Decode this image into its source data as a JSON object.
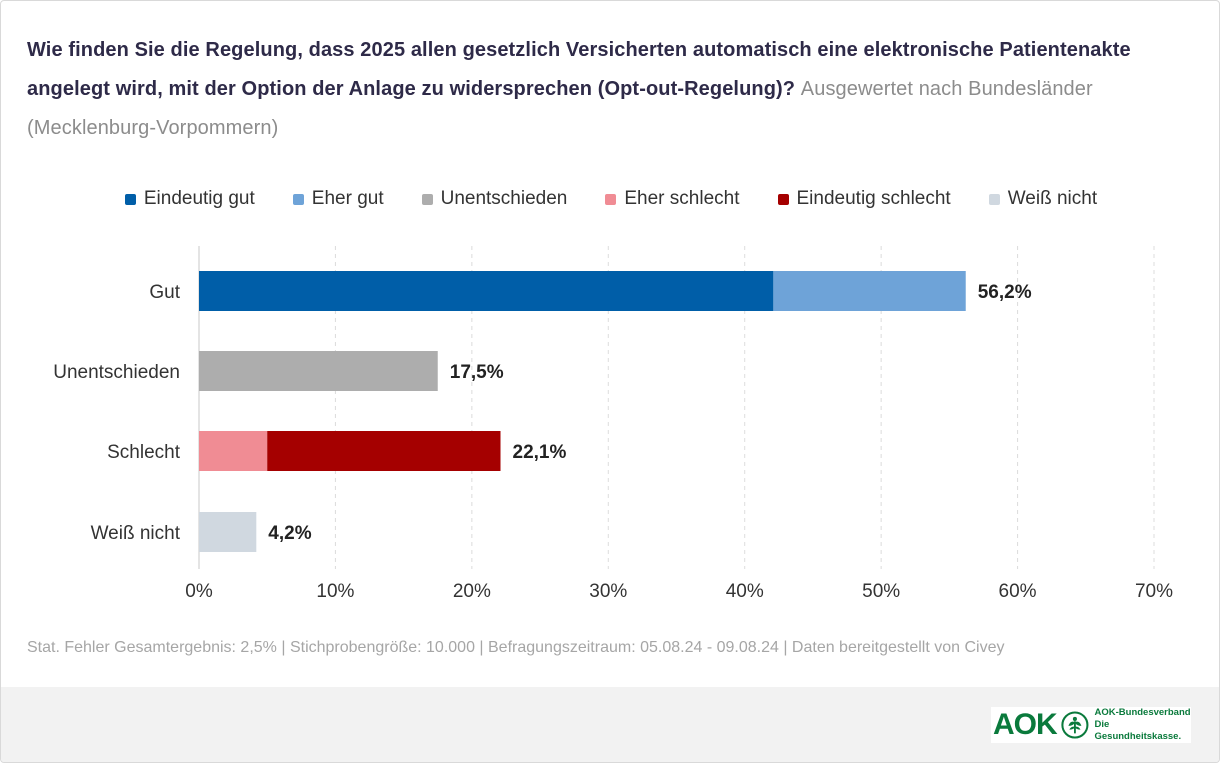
{
  "title": {
    "main": "Wie finden Sie die Regelung, dass 2025 allen gesetzlich Versicherten automatisch eine elektronische Patientenakte angelegt wird, mit der Option der Anlage zu widersprechen (Opt-out-Regelung)?",
    "subtitle": "Ausgewertet nach Bundesländer (Mecklenburg-Vorpommern)"
  },
  "legend": [
    {
      "label": "Eindeutig gut",
      "color": "#005ea8"
    },
    {
      "label": "Eher gut",
      "color": "#6ea3d8"
    },
    {
      "label": "Unentschieden",
      "color": "#adadad"
    },
    {
      "label": "Eher schlecht",
      "color": "#f08c94"
    },
    {
      "label": "Eindeutig schlecht",
      "color": "#a50000"
    },
    {
      "label": "Weiß nicht",
      "color": "#d0d8e0"
    }
  ],
  "chart_data": {
    "type": "bar",
    "orientation": "horizontal",
    "stacked": true,
    "categories": [
      "Gut",
      "Unentschieden",
      "Schlecht",
      "Weiß nicht"
    ],
    "series": [
      {
        "name": "Eindeutig gut",
        "values": [
          42.1,
          0,
          0,
          0
        ]
      },
      {
        "name": "Eher gut",
        "values": [
          14.1,
          0,
          0,
          0
        ]
      },
      {
        "name": "Unentschieden",
        "values": [
          0,
          17.5,
          0,
          0
        ]
      },
      {
        "name": "Eher schlecht",
        "values": [
          0,
          0,
          5.0,
          0
        ]
      },
      {
        "name": "Eindeutig schlecht",
        "values": [
          0,
          0,
          17.1,
          0
        ]
      },
      {
        "name": "Weiß nicht",
        "values": [
          0,
          0,
          0,
          4.2
        ]
      }
    ],
    "totals": [
      "56,2%",
      "17,5%",
      "22,1%",
      "4,2%"
    ],
    "xlim": [
      0,
      70
    ],
    "xticks": [
      0,
      10,
      20,
      30,
      40,
      50,
      60,
      70
    ],
    "xtick_labels": [
      "0%",
      "10%",
      "20%",
      "30%",
      "40%",
      "50%",
      "60%",
      "70%"
    ],
    "grid": "vertical dashed",
    "legend_position": "top"
  },
  "footer": {
    "note": "Stat. Fehler Gesamtergebnis: 2,5% | Stichprobengröße: 10.000 | Befragungszeitraum: 05.08.24 - 09.08.24 | Daten bereitgestellt von Civey"
  },
  "brand": {
    "wordmark": "AOK",
    "line1": "AOK-Bundesverband",
    "line2": "Die Gesundheitskasse.",
    "color": "#0a7a3c"
  }
}
